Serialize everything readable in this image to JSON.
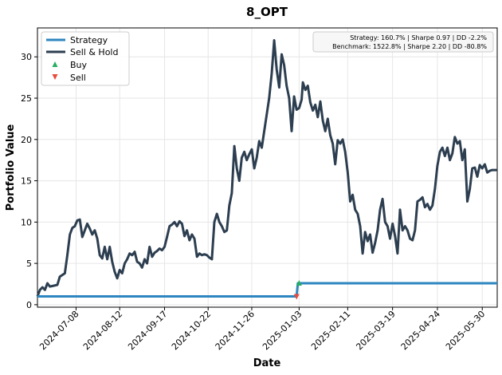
{
  "chart_data": {
    "type": "line",
    "title": "8_OPT",
    "xlabel": "Date",
    "ylabel": "Portfolio Value",
    "ylim": [
      -0.3,
      33.5
    ],
    "yticks": [
      0,
      5,
      10,
      15,
      20,
      25,
      30
    ],
    "x_range": [
      "2024-06-07",
      "2025-06-11"
    ],
    "x_ticks": [
      "2024-07-08",
      "2024-08-12",
      "2024-09-17",
      "2024-10-22",
      "2024-11-26",
      "2025-01-03",
      "2025-02-11",
      "2025-03-19",
      "2025-04-24",
      "2025-05-30"
    ],
    "grid": true,
    "legend_position": "top-left",
    "colors": {
      "strategy": "#2e86c1",
      "sell_hold": "#2c3e50",
      "buy": "#27ae60",
      "sell": "#e74c3c"
    },
    "legend": {
      "strategy": "Strategy",
      "sell_hold": "Sell & Hold",
      "buy": "Buy",
      "sell": "Sell"
    },
    "stats": {
      "strategy": "Strategy: 160.7% | Sharpe 0.97 | DD -2.2%",
      "benchmark": "Benchmark: 1522.8% | Sharpe 2.20 | DD -80.8%"
    },
    "series": [
      {
        "name": "Sell & Hold",
        "points": [
          [
            "2024-06-07",
            1.0
          ],
          [
            "2024-06-09",
            1.8
          ],
          [
            "2024-06-11",
            2.1
          ],
          [
            "2024-06-13",
            1.8
          ],
          [
            "2024-06-15",
            2.6
          ],
          [
            "2024-06-17",
            2.2
          ],
          [
            "2024-06-20",
            2.3
          ],
          [
            "2024-06-23",
            2.4
          ],
          [
            "2024-06-25",
            3.4
          ],
          [
            "2024-06-27",
            3.6
          ],
          [
            "2024-06-29",
            3.8
          ],
          [
            "2024-07-01",
            6.0
          ],
          [
            "2024-07-03",
            8.5
          ],
          [
            "2024-07-05",
            9.3
          ],
          [
            "2024-07-07",
            9.5
          ],
          [
            "2024-07-09",
            10.2
          ],
          [
            "2024-07-11",
            10.3
          ],
          [
            "2024-07-13",
            8.2
          ],
          [
            "2024-07-15",
            9.0
          ],
          [
            "2024-07-17",
            9.8
          ],
          [
            "2024-07-19",
            9.2
          ],
          [
            "2024-07-21",
            8.5
          ],
          [
            "2024-07-23",
            9.0
          ],
          [
            "2024-07-25",
            8.0
          ],
          [
            "2024-07-27",
            6.0
          ],
          [
            "2024-07-29",
            5.6
          ],
          [
            "2024-07-31",
            7.0
          ],
          [
            "2024-08-02",
            5.5
          ],
          [
            "2024-08-04",
            7.0
          ],
          [
            "2024-08-06",
            5.2
          ],
          [
            "2024-08-08",
            4.0
          ],
          [
            "2024-08-10",
            3.2
          ],
          [
            "2024-08-12",
            4.2
          ],
          [
            "2024-08-14",
            3.8
          ],
          [
            "2024-08-16",
            5.0
          ],
          [
            "2024-08-18",
            5.5
          ],
          [
            "2024-08-20",
            6.2
          ],
          [
            "2024-08-22",
            6.0
          ],
          [
            "2024-08-24",
            6.4
          ],
          [
            "2024-08-26",
            5.2
          ],
          [
            "2024-08-28",
            5.0
          ],
          [
            "2024-08-30",
            4.5
          ],
          [
            "2024-09-01",
            5.5
          ],
          [
            "2024-09-03",
            5.0
          ],
          [
            "2024-09-05",
            7.0
          ],
          [
            "2024-09-07",
            5.8
          ],
          [
            "2024-09-09",
            6.3
          ],
          [
            "2024-09-11",
            6.5
          ],
          [
            "2024-09-13",
            6.8
          ],
          [
            "2024-09-15",
            6.6
          ],
          [
            "2024-09-17",
            7.0
          ],
          [
            "2024-09-19",
            8.2
          ],
          [
            "2024-09-21",
            9.5
          ],
          [
            "2024-09-23",
            9.7
          ],
          [
            "2024-09-25",
            10.0
          ],
          [
            "2024-09-27",
            9.5
          ],
          [
            "2024-09-29",
            10.1
          ],
          [
            "2024-10-01",
            9.8
          ],
          [
            "2024-10-03",
            8.3
          ],
          [
            "2024-10-05",
            9.0
          ],
          [
            "2024-10-07",
            7.8
          ],
          [
            "2024-10-09",
            8.5
          ],
          [
            "2024-10-11",
            8.0
          ],
          [
            "2024-10-13",
            5.8
          ],
          [
            "2024-10-15",
            6.2
          ],
          [
            "2024-10-17",
            6.0
          ],
          [
            "2024-10-19",
            6.1
          ],
          [
            "2024-10-21",
            6.0
          ],
          [
            "2024-10-23",
            5.7
          ],
          [
            "2024-10-25",
            5.5
          ],
          [
            "2024-10-27",
            10.0
          ],
          [
            "2024-10-29",
            11.0
          ],
          [
            "2024-10-31",
            10.0
          ],
          [
            "2024-11-02",
            9.5
          ],
          [
            "2024-11-04",
            8.8
          ],
          [
            "2024-11-06",
            9.0
          ],
          [
            "2024-11-08",
            12.0
          ],
          [
            "2024-11-10",
            13.5
          ],
          [
            "2024-11-12",
            19.2
          ],
          [
            "2024-11-14",
            16.5
          ],
          [
            "2024-11-16",
            15.0
          ],
          [
            "2024-11-18",
            17.8
          ],
          [
            "2024-11-20",
            18.5
          ],
          [
            "2024-11-22",
            17.5
          ],
          [
            "2024-11-24",
            18.2
          ],
          [
            "2024-11-26",
            18.8
          ],
          [
            "2024-11-28",
            16.5
          ],
          [
            "2024-11-30",
            17.8
          ],
          [
            "2024-12-02",
            19.8
          ],
          [
            "2024-12-04",
            19.0
          ],
          [
            "2024-12-06",
            21.0
          ],
          [
            "2024-12-08",
            23.0
          ],
          [
            "2024-12-10",
            25.0
          ],
          [
            "2024-12-12",
            28.0
          ],
          [
            "2024-12-14",
            32.0
          ],
          [
            "2024-12-16",
            28.5
          ],
          [
            "2024-12-18",
            26.3
          ],
          [
            "2024-12-20",
            30.3
          ],
          [
            "2024-12-22",
            29.0
          ],
          [
            "2024-12-24",
            26.5
          ],
          [
            "2024-12-26",
            25.0
          ],
          [
            "2024-12-28",
            21.0
          ],
          [
            "2024-12-30",
            25.2
          ],
          [
            "2025-01-01",
            23.6
          ],
          [
            "2025-01-03",
            23.8
          ],
          [
            "2025-01-05",
            24.8
          ],
          [
            "2025-01-06",
            26.9
          ],
          [
            "2025-01-08",
            26.0
          ],
          [
            "2025-01-10",
            26.5
          ],
          [
            "2025-01-12",
            24.5
          ],
          [
            "2025-01-14",
            23.5
          ],
          [
            "2025-01-16",
            24.2
          ],
          [
            "2025-01-18",
            22.7
          ],
          [
            "2025-01-20",
            24.6
          ],
          [
            "2025-01-22",
            22.3
          ],
          [
            "2025-01-24",
            21.0
          ],
          [
            "2025-01-26",
            22.5
          ],
          [
            "2025-01-28",
            20.5
          ],
          [
            "2025-01-30",
            19.5
          ],
          [
            "2025-02-01",
            17.0
          ],
          [
            "2025-02-03",
            19.9
          ],
          [
            "2025-02-05",
            19.5
          ],
          [
            "2025-02-07",
            20.0
          ],
          [
            "2025-02-09",
            18.5
          ],
          [
            "2025-02-11",
            16.0
          ],
          [
            "2025-02-13",
            12.5
          ],
          [
            "2025-02-15",
            13.3
          ],
          [
            "2025-02-17",
            11.5
          ],
          [
            "2025-02-19",
            11.0
          ],
          [
            "2025-02-21",
            9.5
          ],
          [
            "2025-02-23",
            6.2
          ],
          [
            "2025-02-25",
            8.8
          ],
          [
            "2025-02-27",
            7.7
          ],
          [
            "2025-03-01",
            8.5
          ],
          [
            "2025-03-03",
            6.3
          ],
          [
            "2025-03-05",
            7.5
          ],
          [
            "2025-03-07",
            9.0
          ],
          [
            "2025-03-09",
            11.5
          ],
          [
            "2025-03-11",
            12.8
          ],
          [
            "2025-03-13",
            10.0
          ],
          [
            "2025-03-15",
            9.5
          ],
          [
            "2025-03-17",
            8.0
          ],
          [
            "2025-03-19",
            9.8
          ],
          [
            "2025-03-21",
            8.3
          ],
          [
            "2025-03-23",
            6.2
          ],
          [
            "2025-03-25",
            11.5
          ],
          [
            "2025-03-27",
            9.0
          ],
          [
            "2025-03-29",
            9.5
          ],
          [
            "2025-03-31",
            9.0
          ],
          [
            "2025-04-02",
            8.0
          ],
          [
            "2025-04-04",
            7.8
          ],
          [
            "2025-04-06",
            9.0
          ],
          [
            "2025-04-08",
            12.5
          ],
          [
            "2025-04-10",
            12.7
          ],
          [
            "2025-04-12",
            13.0
          ],
          [
            "2025-04-14",
            11.8
          ],
          [
            "2025-04-16",
            12.2
          ],
          [
            "2025-04-18",
            11.5
          ],
          [
            "2025-04-20",
            12.0
          ],
          [
            "2025-04-22",
            14.0
          ],
          [
            "2025-04-24",
            16.8
          ],
          [
            "2025-04-26",
            18.5
          ],
          [
            "2025-04-28",
            19.0
          ],
          [
            "2025-04-30",
            18.0
          ],
          [
            "2025-05-02",
            19.0
          ],
          [
            "2025-05-04",
            17.5
          ],
          [
            "2025-05-06",
            18.3
          ],
          [
            "2025-05-08",
            20.3
          ],
          [
            "2025-05-10",
            19.5
          ],
          [
            "2025-05-12",
            19.8
          ],
          [
            "2025-05-14",
            17.5
          ],
          [
            "2025-05-16",
            18.8
          ],
          [
            "2025-05-18",
            12.5
          ],
          [
            "2025-05-20",
            14.0
          ],
          [
            "2025-05-22",
            16.5
          ],
          [
            "2025-05-24",
            16.6
          ],
          [
            "2025-05-26",
            15.5
          ],
          [
            "2025-05-28",
            16.9
          ],
          [
            "2025-05-30",
            16.5
          ],
          [
            "2025-06-01",
            17.0
          ],
          [
            "2025-06-03",
            16.0
          ],
          [
            "2025-06-05",
            16.2
          ],
          [
            "2025-06-07",
            16.3
          ],
          [
            "2025-06-09",
            16.3
          ],
          [
            "2025-06-11",
            16.3
          ]
        ]
      },
      {
        "name": "Strategy",
        "points": [
          [
            "2024-06-07",
            1.0
          ],
          [
            "2025-01-01",
            1.0
          ],
          [
            "2025-01-02",
            2.6
          ],
          [
            "2025-06-11",
            2.6
          ]
        ]
      }
    ],
    "markers": [
      {
        "type": "Sell",
        "date": "2025-01-01",
        "value": 1.0
      },
      {
        "type": "Buy",
        "date": "2025-01-03",
        "value": 2.6
      }
    ]
  }
}
